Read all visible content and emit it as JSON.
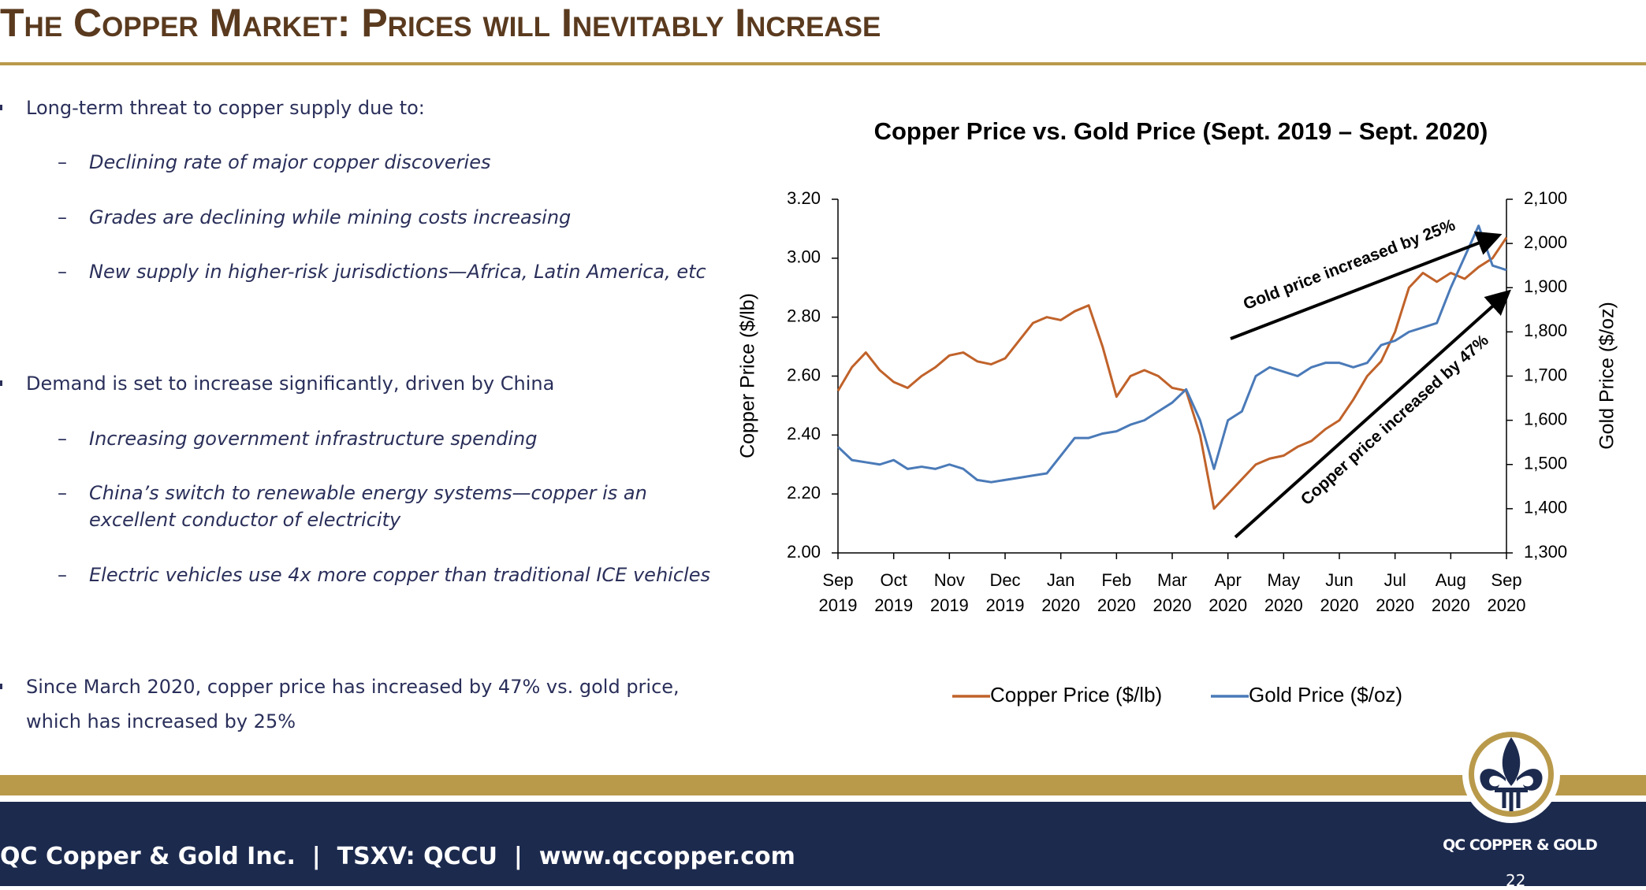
{
  "header": {
    "title": "The Copper Market:  Prices will Inevitably Increase"
  },
  "bullets": [
    {
      "text": "Long-term threat to copper supply due to:",
      "subs": [
        "Declining rate of major copper discoveries",
        "Grades are declining while mining costs increasing",
        "New supply in higher-risk jurisdictions—Africa, Latin America, etc"
      ]
    },
    {
      "text": "Demand is set to increase significantly, driven by China",
      "subs": [
        "Increasing government infrastructure spending",
        "China’s switch to renewable energy systems—copper is an excellent conductor of electricity",
        "Electric vehicles use 4x more copper than traditional ICE vehicles"
      ]
    },
    {
      "text": "Since March 2020, copper price has increased by 47% vs. gold price, which has increased by 25%",
      "subs": []
    }
  ],
  "footer": {
    "text": "QC Copper & Gold Inc.  |  TSXV: QCCU  |  www.qccopper.com",
    "logo": "QC COPPER & GOLD",
    "page": "22"
  },
  "chart_data": {
    "type": "line",
    "title": "Copper Price vs. Gold Price (Sept. 2019 – Sept. 2020)",
    "y_label": "Copper Price ($/lb)",
    "y2_label": "Gold Price ($/oz)",
    "categories": [
      "Sep 2019",
      null,
      null,
      null,
      "Oct 2019",
      null,
      null,
      null,
      "Nov 2019",
      null,
      null,
      null,
      "Dec 2019",
      null,
      null,
      null,
      "Jan 2020",
      null,
      null,
      null,
      "Feb 2020",
      null,
      null,
      null,
      "Mar 2020",
      null,
      null,
      null,
      "Apr 2020",
      null,
      null,
      null,
      "May 2020",
      null,
      null,
      null,
      "Jun 2020",
      null,
      null,
      null,
      "Jul 2020",
      null,
      null,
      null,
      "Aug 2020",
      null,
      null,
      null,
      "Sep 2020"
    ],
    "series": [
      {
        "name": "Copper Price ($/lb)",
        "color": "#c0622a",
        "values": [
          2.55,
          2.63,
          2.68,
          2.62,
          2.58,
          2.56,
          2.6,
          2.63,
          2.67,
          2.68,
          2.65,
          2.64,
          2.66,
          2.72,
          2.78,
          2.8,
          2.79,
          2.82,
          2.84,
          2.7,
          2.53,
          2.6,
          2.62,
          2.6,
          2.56,
          2.55,
          2.4,
          2.15,
          2.2,
          2.25,
          2.3,
          2.32,
          2.33,
          2.36,
          2.38,
          2.42,
          2.45,
          2.52,
          2.6,
          2.65,
          2.75,
          2.9,
          2.95,
          2.92,
          2.95,
          2.93,
          2.97,
          3.0,
          3.07
        ]
      },
      {
        "name": "Gold Price ($/oz)",
        "color": "#4a7ab8",
        "axis": "y2",
        "values": [
          1540,
          1510,
          1505,
          1500,
          1510,
          1490,
          1495,
          1490,
          1500,
          1490,
          1465,
          1460,
          1465,
          1470,
          1475,
          1480,
          1520,
          1560,
          1560,
          1570,
          1575,
          1590,
          1600,
          1620,
          1640,
          1670,
          1600,
          1490,
          1600,
          1620,
          1700,
          1720,
          1710,
          1700,
          1720,
          1730,
          1730,
          1720,
          1730,
          1770,
          1780,
          1800,
          1810,
          1820,
          1900,
          1970,
          2040,
          1950,
          1940
        ]
      }
    ],
    "ylim": [
      2.0,
      3.2
    ],
    "yticks": [
      {
        "value": 2.0,
        "label": "2.00"
      },
      {
        "value": 2.2,
        "label": "2.20"
      },
      {
        "value": 2.4,
        "label": "2.40"
      },
      {
        "value": 2.6,
        "label": "2.60"
      },
      {
        "value": 2.8,
        "label": "2.80"
      },
      {
        "value": 3.0,
        "label": "3.00"
      },
      {
        "value": 3.2,
        "label": "3.20"
      }
    ],
    "y2lim": [
      1300,
      2100
    ],
    "y2ticks": [
      {
        "value": 1300,
        "label": "1,300"
      },
      {
        "value": 1400,
        "label": "1,400"
      },
      {
        "value": 1500,
        "label": "1,500"
      },
      {
        "value": 1600,
        "label": "1,600"
      },
      {
        "value": 1700,
        "label": "1,700"
      },
      {
        "value": 1800,
        "label": "1,800"
      },
      {
        "value": 1900,
        "label": "1,900"
      },
      {
        "value": 2000,
        "label": "2,000"
      },
      {
        "value": 2100,
        "label": "2,100"
      }
    ],
    "grid": false,
    "legend": "bottom",
    "annotations": [
      "Gold price increased by 25%",
      "Copper price increased by 47%"
    ]
  }
}
